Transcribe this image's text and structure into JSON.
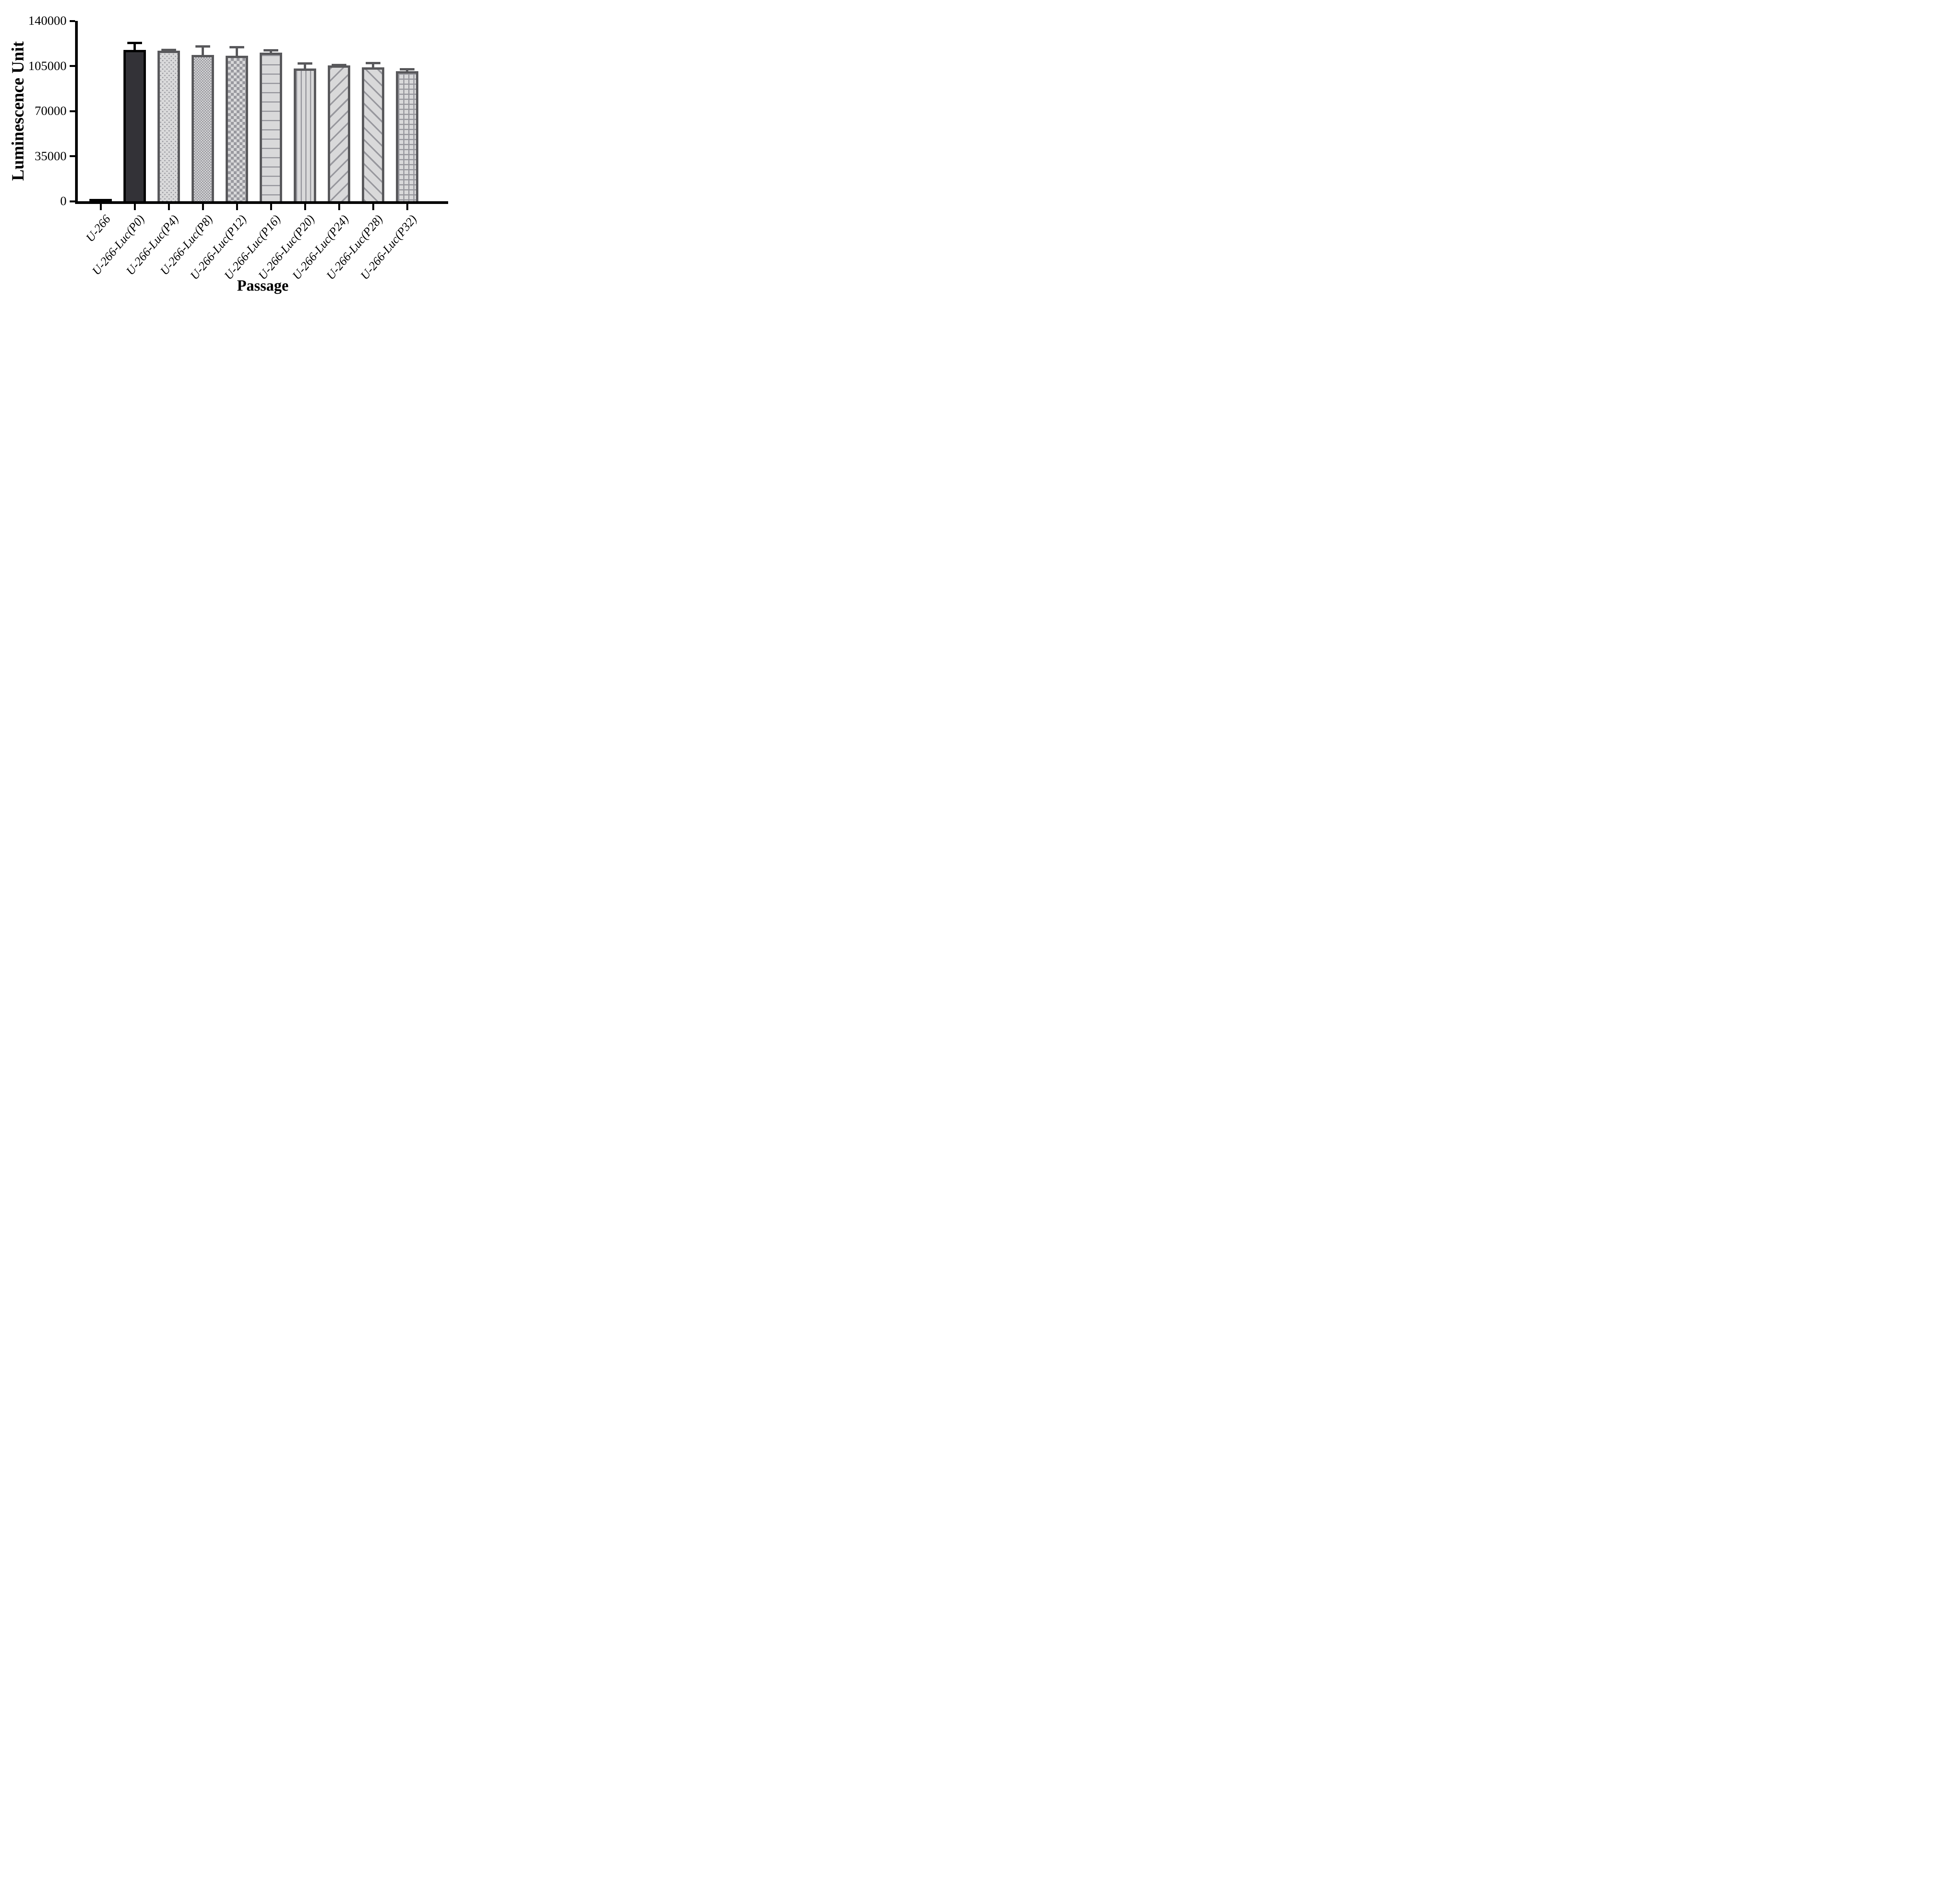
{
  "chart_data": {
    "type": "bar",
    "title": "",
    "xlabel": "Passage",
    "ylabel": "Luminescence Unit",
    "ylim": [
      0,
      140000
    ],
    "y_ticks": [
      0,
      35000,
      70000,
      105000,
      140000
    ],
    "grid": false,
    "legend": "none",
    "categories": [
      "U-266",
      "U-266-Luc(P0)",
      "U-266-Luc(P4)",
      "U-266-Luc(P8)",
      "U-266-Luc(P12)",
      "U-266-Luc(P16)",
      "U-266-Luc(P20)",
      "U-266-Luc(P24)",
      "U-266-Luc(P28)",
      "U-266-Luc(P32)"
    ],
    "values": [
      800,
      117500,
      117000,
      113500,
      113000,
      115500,
      103000,
      105500,
      104000,
      101000
    ],
    "errors": [
      0,
      6300,
      1400,
      7500,
      7500,
      2600,
      5000,
      1300,
      4200,
      2300
    ],
    "bar_patterns": [
      "blank",
      "solid",
      "dots",
      "checker-small",
      "checker-large",
      "hlines",
      "vlines",
      "diag-up",
      "diag-down",
      "grid"
    ],
    "colors": {
      "axis": "#000000",
      "bar_dark_fill": "#333237",
      "gray_border": "#58585B",
      "gray_fill": "#D9D9DA",
      "pattern_gray": "#98989E"
    }
  }
}
